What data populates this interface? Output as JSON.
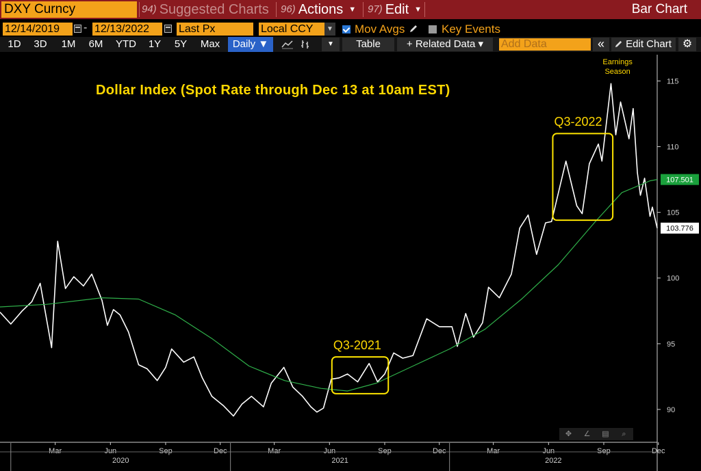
{
  "header": {
    "security": "DXY Curncy",
    "suggested": {
      "num": "94)",
      "label": "Suggested Charts"
    },
    "actions": {
      "num": "96)",
      "label": "Actions"
    },
    "edit": {
      "num": "97)",
      "label": "Edit"
    },
    "chart_kind": "Bar Chart"
  },
  "controls": {
    "start_date": "12/14/2019",
    "end_date": "12/13/2022",
    "dash": "-",
    "field": "Last Px",
    "currency": "Local CCY",
    "mov_avgs": "Mov Avgs",
    "key_events": "Key Events"
  },
  "toolbar": {
    "ranges": [
      "1D",
      "3D",
      "1M",
      "6M",
      "YTD",
      "1Y",
      "5Y",
      "Max"
    ],
    "period": "Daily ▼",
    "table": "Table",
    "related": "+ Related Data ▾",
    "add_data_placeholder": "Add Data",
    "collapse": "«",
    "edit_chart": "Edit Chart"
  },
  "chart_data": {
    "type": "line",
    "title": "Dollar Index (Spot Rate through Dec 13 at 10am EST)",
    "x_axis": {
      "months": [
        "Mar",
        "Jun",
        "Sep",
        "Dec",
        "Mar",
        "Jun",
        "Sep",
        "Dec",
        "Mar",
        "Jun",
        "Sep",
        "Dec"
      ],
      "years": [
        "2020",
        "2021",
        "2022"
      ],
      "range": [
        "2019-12-14",
        "2022-12-13"
      ]
    },
    "y_axis": {
      "ticks": [
        90,
        95,
        100,
        105,
        110,
        115
      ],
      "ylim": [
        87.5,
        117
      ],
      "side": "right"
    },
    "series": [
      {
        "color": "#ffffff",
        "points": [
          [
            "2019-12-14",
            97.4
          ],
          [
            "2020-01-01",
            96.5
          ],
          [
            "2020-01-20",
            97.5
          ],
          [
            "2020-02-05",
            98.2
          ],
          [
            "2020-02-19",
            99.6
          ],
          [
            "2020-03-09",
            94.7
          ],
          [
            "2020-03-19",
            102.8
          ],
          [
            "2020-04-01",
            99.2
          ],
          [
            "2020-04-15",
            100.1
          ],
          [
            "2020-05-01",
            99.4
          ],
          [
            "2020-05-15",
            100.3
          ],
          [
            "2020-06-01",
            98.3
          ],
          [
            "2020-06-10",
            96.4
          ],
          [
            "2020-06-20",
            97.6
          ],
          [
            "2020-07-01",
            97.2
          ],
          [
            "2020-07-15",
            95.9
          ],
          [
            "2020-08-01",
            93.4
          ],
          [
            "2020-08-15",
            93.1
          ],
          [
            "2020-09-01",
            92.2
          ],
          [
            "2020-09-15",
            93.2
          ],
          [
            "2020-09-25",
            94.6
          ],
          [
            "2020-10-15",
            93.6
          ],
          [
            "2020-11-01",
            94.0
          ],
          [
            "2020-11-15",
            92.4
          ],
          [
            "2020-12-01",
            91.0
          ],
          [
            "2020-12-20",
            90.3
          ],
          [
            "2021-01-06",
            89.5
          ],
          [
            "2021-01-20",
            90.4
          ],
          [
            "2021-02-05",
            91.0
          ],
          [
            "2021-02-25",
            90.2
          ],
          [
            "2021-03-10",
            92.0
          ],
          [
            "2021-03-31",
            93.2
          ],
          [
            "2021-04-15",
            91.7
          ],
          [
            "2021-05-01",
            91.0
          ],
          [
            "2021-05-15",
            90.2
          ],
          [
            "2021-05-25",
            89.8
          ],
          [
            "2021-06-05",
            90.1
          ],
          [
            "2021-06-18",
            92.3
          ],
          [
            "2021-07-01",
            92.4
          ],
          [
            "2021-07-15",
            92.7
          ],
          [
            "2021-08-01",
            92.1
          ],
          [
            "2021-08-20",
            93.5
          ],
          [
            "2021-09-03",
            92.1
          ],
          [
            "2021-09-15",
            92.7
          ],
          [
            "2021-09-30",
            94.3
          ],
          [
            "2021-10-15",
            93.9
          ],
          [
            "2021-11-01",
            94.1
          ],
          [
            "2021-11-24",
            96.9
          ],
          [
            "2021-12-15",
            96.3
          ],
          [
            "2022-01-05",
            96.3
          ],
          [
            "2022-01-14",
            94.8
          ],
          [
            "2022-01-28",
            97.3
          ],
          [
            "2022-02-10",
            95.5
          ],
          [
            "2022-02-25",
            96.6
          ],
          [
            "2022-03-07",
            99.3
          ],
          [
            "2022-03-25",
            98.5
          ],
          [
            "2022-04-14",
            100.3
          ],
          [
            "2022-04-28",
            103.8
          ],
          [
            "2022-05-12",
            104.8
          ],
          [
            "2022-05-26",
            101.8
          ],
          [
            "2022-06-10",
            104.2
          ],
          [
            "2022-06-20",
            104.3
          ],
          [
            "2022-07-14",
            108.9
          ],
          [
            "2022-08-01",
            105.5
          ],
          [
            "2022-08-10",
            104.9
          ],
          [
            "2022-08-22",
            108.7
          ],
          [
            "2022-09-06",
            110.2
          ],
          [
            "2022-09-12",
            108.9
          ],
          [
            "2022-09-27",
            114.8
          ],
          [
            "2022-10-05",
            110.9
          ],
          [
            "2022-10-13",
            113.4
          ],
          [
            "2022-10-27",
            110.6
          ],
          [
            "2022-11-03",
            112.9
          ],
          [
            "2022-11-10",
            108.0
          ],
          [
            "2022-11-15",
            106.3
          ],
          [
            "2022-11-22",
            107.6
          ],
          [
            "2022-12-01",
            104.7
          ],
          [
            "2022-12-05",
            105.4
          ],
          [
            "2022-12-13",
            103.8
          ]
        ],
        "last_value": "103.776",
        "label_color": "#ffffff"
      },
      {
        "color": "#2fb04a",
        "points": [
          [
            "2019-12-14",
            97.8
          ],
          [
            "2020-03-01",
            98.0
          ],
          [
            "2020-06-01",
            98.5
          ],
          [
            "2020-08-01",
            98.4
          ],
          [
            "2020-10-01",
            97.2
          ],
          [
            "2020-12-01",
            95.4
          ],
          [
            "2021-02-01",
            93.3
          ],
          [
            "2021-04-01",
            92.2
          ],
          [
            "2021-06-01",
            91.6
          ],
          [
            "2021-07-15",
            91.4
          ],
          [
            "2021-09-01",
            92.0
          ],
          [
            "2021-11-01",
            93.3
          ],
          [
            "2022-01-01",
            94.6
          ],
          [
            "2022-03-01",
            96.1
          ],
          [
            "2022-05-01",
            98.4
          ],
          [
            "2022-07-01",
            101.0
          ],
          [
            "2022-09-01",
            104.3
          ],
          [
            "2022-10-15",
            106.5
          ],
          [
            "2022-12-01",
            107.4
          ],
          [
            "2022-12-13",
            107.5
          ]
        ],
        "last_value": "107.501",
        "label_color": "#1aa03c"
      }
    ],
    "annotations": [
      {
        "text": "Q3-2021",
        "from": "2021-06-19",
        "to": "2021-09-21",
        "y_top": 94.0,
        "y_bottom": 91.2
      },
      {
        "text": "Q3-2022",
        "from": "2022-06-22",
        "to": "2022-09-30",
        "y_top": 111.0,
        "y_bottom": 104.4
      },
      {
        "text": "Earnings Season",
        "at": "2022-10-08",
        "y": 116.5
      }
    ]
  }
}
